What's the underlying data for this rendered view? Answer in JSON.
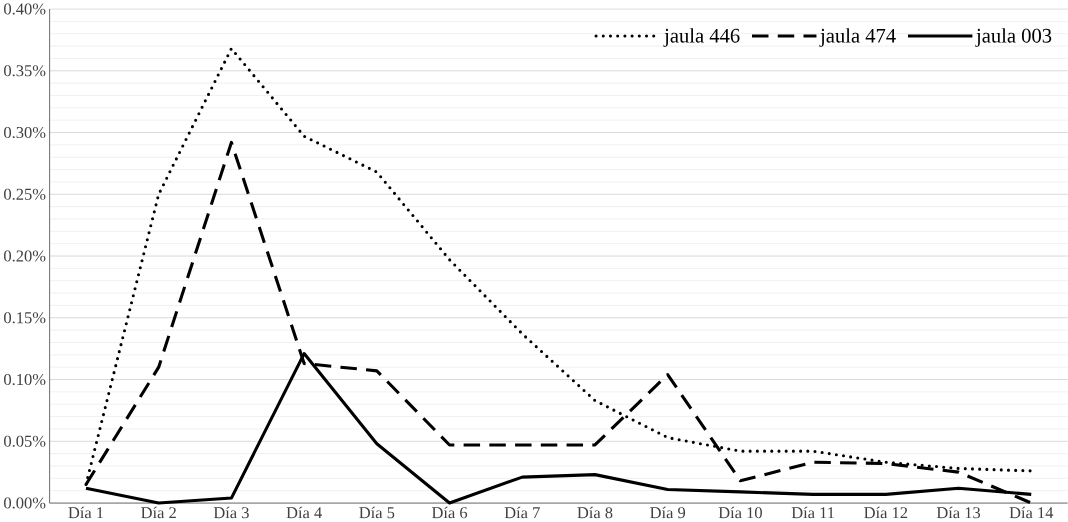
{
  "chart_data": {
    "type": "line",
    "categories": [
      "Día 1",
      "Día 2",
      "Día 3",
      "Día 4",
      "Día 5",
      "Día 6",
      "Día 7",
      "Día 8",
      "Día 9",
      "Día 10",
      "Día 11",
      "Día 12",
      "Día 13",
      "Día 14"
    ],
    "series": [
      {
        "name": "jaula 446",
        "color": "#000000",
        "line_style": "dotted",
        "values": [
          0.015,
          0.25,
          0.368,
          0.297,
          0.268,
          0.197,
          0.137,
          0.083,
          0.053,
          0.042,
          0.042,
          0.033,
          0.028,
          0.026
        ]
      },
      {
        "name": "jaula 474",
        "color": "#000000",
        "line_style": "dashed",
        "values": [
          0.015,
          0.11,
          0.292,
          0.113,
          0.107,
          0.047,
          0.047,
          0.047,
          0.104,
          0.018,
          0.033,
          0.032,
          0.025,
          0.0
        ]
      },
      {
        "name": "jaula 003",
        "color": "#000000",
        "line_style": "solid",
        "values": [
          0.012,
          0.0,
          0.004,
          0.121,
          0.048,
          0.0,
          0.021,
          0.023,
          0.011,
          0.009,
          0.007,
          0.007,
          0.012,
          0.007
        ]
      }
    ],
    "ylim": [
      0,
      0.4
    ],
    "yticks": [
      {
        "value": 0,
        "label": "0.00%"
      },
      {
        "value": 0.05,
        "label": "0.05%"
      },
      {
        "value": 0.1,
        "label": "0.10%"
      },
      {
        "value": 0.15,
        "label": "0.15%"
      },
      {
        "value": 0.2,
        "label": "0.20%"
      },
      {
        "value": 0.25,
        "label": "0.25%"
      },
      {
        "value": 0.3,
        "label": "0.30%"
      },
      {
        "value": 0.35,
        "label": "0.35%"
      },
      {
        "value": 0.4,
        "label": "0.40%"
      }
    ],
    "grid": "y",
    "legend": "top right",
    "marker": "none"
  }
}
